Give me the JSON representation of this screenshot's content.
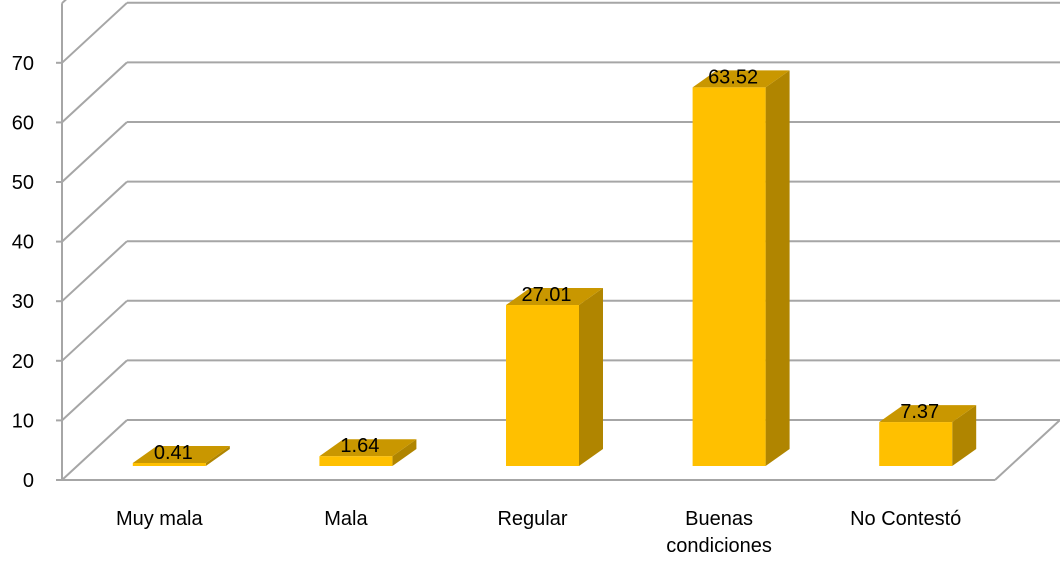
{
  "chart_data": {
    "type": "bar",
    "categories": [
      [
        "Muy mala"
      ],
      [
        "Mala"
      ],
      [
        "Regular"
      ],
      [
        "Buenas",
        "condiciones"
      ],
      [
        "No Contestó"
      ]
    ],
    "values": [
      0.41,
      1.64,
      27.01,
      63.52,
      7.37
    ],
    "data_labels": [
      "0.41",
      "1.64",
      "27.01",
      "63.52",
      "7.37"
    ],
    "y_ticks": [
      "0",
      "10",
      "20",
      "30",
      "40",
      "50",
      "60",
      "70"
    ],
    "ylim": [
      0,
      80
    ],
    "grid": true,
    "legend": "none",
    "colors": {
      "bar_front": "#FFC000",
      "bar_side": "#B08500",
      "bar_top": "#C99700",
      "gridline": "#A6A6A6"
    }
  }
}
